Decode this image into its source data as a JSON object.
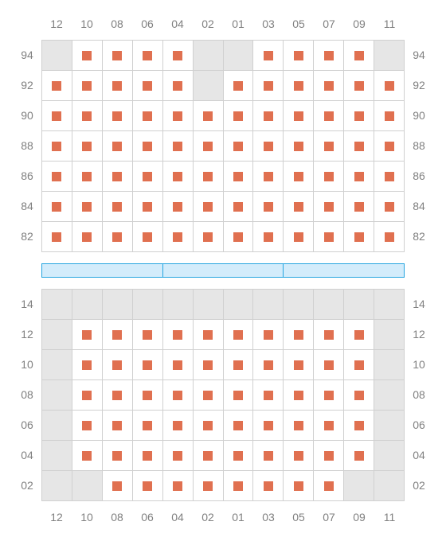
{
  "columns": [
    "12",
    "10",
    "08",
    "06",
    "04",
    "02",
    "01",
    "03",
    "05",
    "07",
    "09",
    "11"
  ],
  "upper": {
    "row_labels": [
      "94",
      "92",
      "90",
      "88",
      "86",
      "84",
      "82"
    ],
    "cells": [
      [
        "empty",
        "seat",
        "seat",
        "seat",
        "seat",
        "empty",
        "empty",
        "seat",
        "seat",
        "seat",
        "seat",
        "empty"
      ],
      [
        "seat",
        "seat",
        "seat",
        "seat",
        "seat",
        "empty",
        "seat",
        "seat",
        "seat",
        "seat",
        "seat",
        "seat"
      ],
      [
        "seat",
        "seat",
        "seat",
        "seat",
        "seat",
        "seat",
        "seat",
        "seat",
        "seat",
        "seat",
        "seat",
        "seat"
      ],
      [
        "seat",
        "seat",
        "seat",
        "seat",
        "seat",
        "seat",
        "seat",
        "seat",
        "seat",
        "seat",
        "seat",
        "seat"
      ],
      [
        "seat",
        "seat",
        "seat",
        "seat",
        "seat",
        "seat",
        "seat",
        "seat",
        "seat",
        "seat",
        "seat",
        "seat"
      ],
      [
        "seat",
        "seat",
        "seat",
        "seat",
        "seat",
        "seat",
        "seat",
        "seat",
        "seat",
        "seat",
        "seat",
        "seat"
      ],
      [
        "seat",
        "seat",
        "seat",
        "seat",
        "seat",
        "seat",
        "seat",
        "seat",
        "seat",
        "seat",
        "seat",
        "seat"
      ]
    ]
  },
  "lower": {
    "row_labels": [
      "14",
      "12",
      "10",
      "08",
      "06",
      "04",
      "02"
    ],
    "cells": [
      [
        "empty",
        "empty",
        "empty",
        "empty",
        "empty",
        "empty",
        "empty",
        "empty",
        "empty",
        "empty",
        "empty",
        "empty"
      ],
      [
        "empty",
        "seat",
        "seat",
        "seat",
        "seat",
        "seat",
        "seat",
        "seat",
        "seat",
        "seat",
        "seat",
        "empty"
      ],
      [
        "empty",
        "seat",
        "seat",
        "seat",
        "seat",
        "seat",
        "seat",
        "seat",
        "seat",
        "seat",
        "seat",
        "empty"
      ],
      [
        "empty",
        "seat",
        "seat",
        "seat",
        "seat",
        "seat",
        "seat",
        "seat",
        "seat",
        "seat",
        "seat",
        "empty"
      ],
      [
        "empty",
        "seat",
        "seat",
        "seat",
        "seat",
        "seat",
        "seat",
        "seat",
        "seat",
        "seat",
        "seat",
        "empty"
      ],
      [
        "empty",
        "seat",
        "seat",
        "seat",
        "seat",
        "seat",
        "seat",
        "seat",
        "seat",
        "seat",
        "seat",
        "empty"
      ],
      [
        "empty",
        "empty",
        "seat",
        "seat",
        "seat",
        "seat",
        "seat",
        "seat",
        "seat",
        "seat",
        "empty",
        "empty"
      ]
    ]
  },
  "stage_segments": 3,
  "colors": {
    "seat": "#e07050",
    "empty_bg": "#e6e6e6",
    "grid_line": "#d0d0d0",
    "label_text": "#808080",
    "stage_fill": "#d3ecfb",
    "stage_border": "#26a5e0"
  }
}
